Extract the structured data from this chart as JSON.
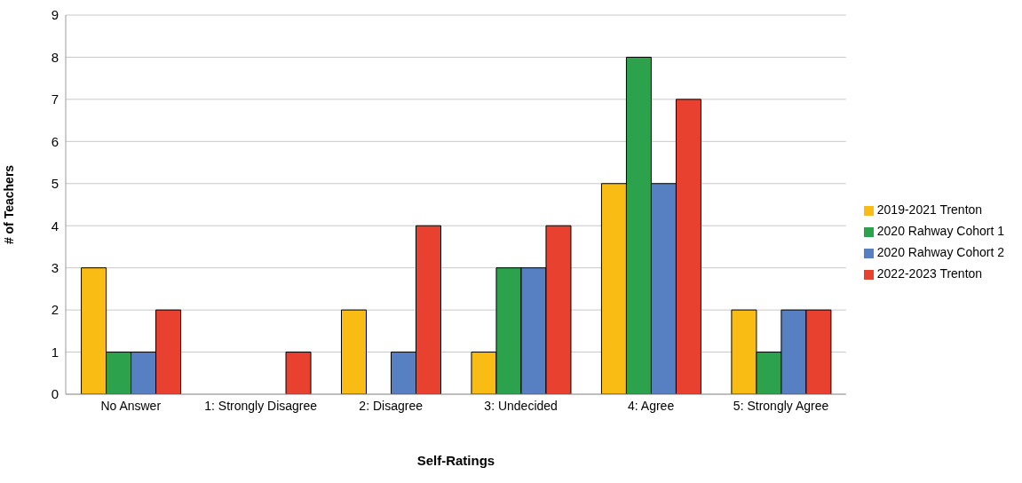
{
  "chart_data": {
    "type": "bar",
    "xlabel": "Self-Ratings",
    "ylabel": "# of Teachers",
    "categories": [
      "No Answer",
      "1: Strongly Disagree",
      "2: Disagree",
      "3: Undecided",
      "4: Agree",
      "5: Strongly Agree"
    ],
    "series": [
      {
        "name": "2019-2021 Trenton",
        "color": "#f9bc15",
        "values": [
          3,
          0,
          2,
          1,
          5,
          2
        ]
      },
      {
        "name": "2020 Rahway Cohort 1",
        "color": "#2ca24c",
        "values": [
          1,
          0,
          0,
          3,
          8,
          1
        ]
      },
      {
        "name": "2020 Rahway Cohort 2",
        "color": "#5680c2",
        "values": [
          1,
          0,
          1,
          3,
          5,
          2
        ]
      },
      {
        "name": "2022-2023 Trenton",
        "color": "#e8412f",
        "values": [
          2,
          1,
          4,
          4,
          7,
          2
        ]
      }
    ],
    "ylim": [
      0,
      9
    ],
    "yticks": [
      0,
      1,
      2,
      3,
      4,
      5,
      6,
      7,
      8,
      9
    ],
    "grid": "y",
    "legend": "right"
  }
}
